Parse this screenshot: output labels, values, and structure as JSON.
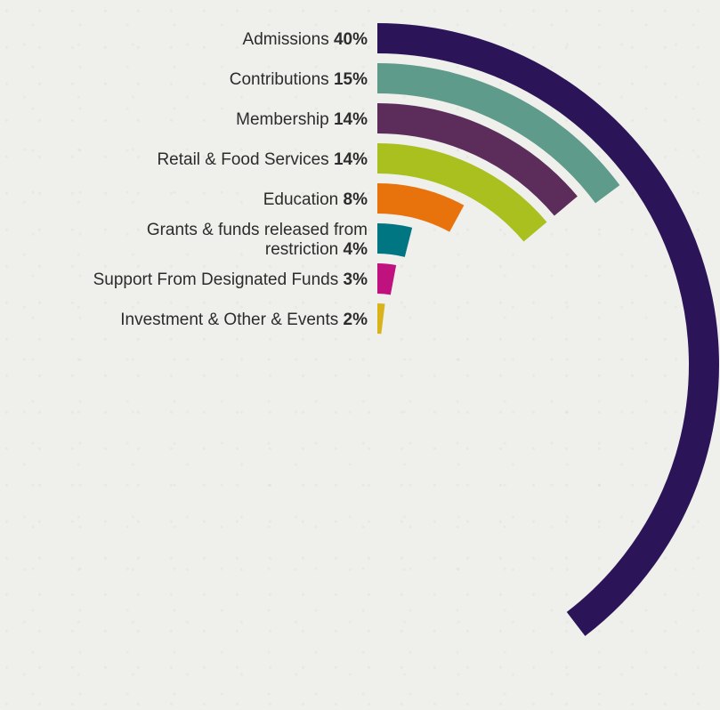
{
  "chart_data": {
    "type": "radial-bar",
    "series": [
      {
        "name": "Admissions",
        "label": "Admissions 40%",
        "value": 40,
        "color": "#2b1558"
      },
      {
        "name": "Contributions",
        "label": "Contributions 15%",
        "value": 15,
        "color": "#5f9b8a"
      },
      {
        "name": "Membership",
        "label": "Membership 14%",
        "value": 14,
        "color": "#5c2d5b"
      },
      {
        "name": "Retail & Food Services",
        "label": "Retail & Food Services 14%",
        "value": 14,
        "color": "#a9c01f"
      },
      {
        "name": "Education",
        "label": "Education 8%",
        "value": 8,
        "color": "#e8720c"
      },
      {
        "name": "Grants & funds released from restriction",
        "label": "Grants & funds released from restriction 4%",
        "label_lines": [
          "Grants & funds released from",
          "restriction 4%"
        ],
        "value": 4,
        "color": "#007682"
      },
      {
        "name": "Support From Designated Funds",
        "label": "Support From Designated Funds 3%",
        "value": 3,
        "color": "#c0127e"
      },
      {
        "name": "Investment & Other & Events",
        "label": "Investment & Other & Events 2%",
        "value": 2,
        "color": "#d9b31c"
      }
    ]
  }
}
